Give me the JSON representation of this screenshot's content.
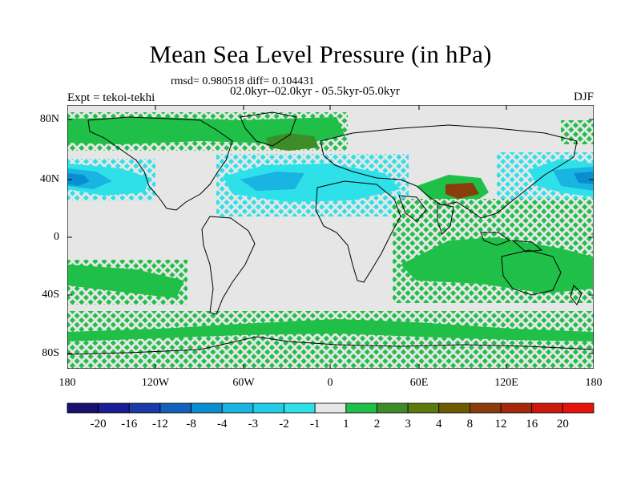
{
  "title": "Mean Sea Level Pressure (in hPa)",
  "stats_line": "rmsd= 0.980518 diff= 0.104431",
  "period_line": "02.0kyr--02.0kyr - 05.5kyr-05.0kyr",
  "experiment_label": "Expt = tekoi-tekhi",
  "season_label": "DJF",
  "lat_ticks": [
    "80N",
    "40N",
    "0",
    "40S",
    "80S"
  ],
  "lon_ticks": [
    "180",
    "120W",
    "60W",
    "0",
    "60E",
    "120E",
    "180"
  ],
  "colorbar": {
    "labels": [
      "-20",
      "-16",
      "-12",
      "-8",
      "-4",
      "-3",
      "-2",
      "-1",
      "1",
      "2",
      "3",
      "4",
      "8",
      "12",
      "16",
      "20"
    ],
    "colors": [
      "#1a1070",
      "#1c1c96",
      "#1a3aa8",
      "#1160bc",
      "#0a8ed2",
      "#1ab4e2",
      "#22cce6",
      "#2ee0e8",
      "#e6e6e6",
      "#1fbf48",
      "#3e8c28",
      "#5a7a10",
      "#6e5a00",
      "#8a3c0a",
      "#a8260a",
      "#cc1a0a",
      "#e6140a"
    ]
  },
  "map_colors": {
    "background": "#e6e6e6",
    "positive_light": "#1fbf48",
    "positive_mid": "#3e8c28",
    "positive_strong": "#8a3c0a",
    "negative_light": "#2ee0e8",
    "negative_mid": "#1ab4e2",
    "negative_strong": "#0a8ed2"
  }
}
